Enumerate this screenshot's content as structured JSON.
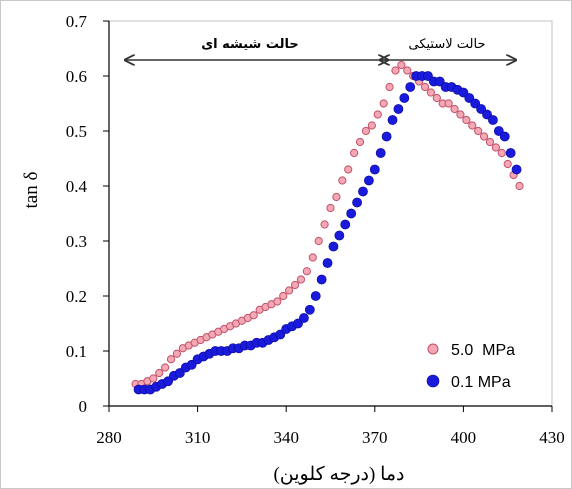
{
  "chart_data": {
    "type": "scatter",
    "xlabel": "دما (درجه کلوین)",
    "ylabel": "tan δ",
    "xlim": [
      280,
      430
    ],
    "ylim": [
      0,
      0.7
    ],
    "xticks": [
      "280",
      "310",
      "340",
      "370",
      "400",
      "430"
    ],
    "yticks": [
      "0",
      "0.1",
      "0.2",
      "0.3",
      "0.4",
      "0.5",
      "0.6",
      "0.7"
    ],
    "grid": false,
    "legend_position": "bottom-right",
    "annotations": {
      "glassy": "حالت شیشه ای",
      "rubbery": "حالت لاستیکی"
    },
    "series": [
      {
        "name": "5.0  MPa",
        "color": "#f4a8b4",
        "edge": "#c0506a",
        "x": [
          289,
          291,
          293,
          295,
          297,
          299,
          301,
          303,
          305,
          307,
          309,
          311,
          313,
          315,
          317,
          319,
          321,
          323,
          325,
          327,
          329,
          331,
          333,
          335,
          337,
          339,
          341,
          343,
          345,
          347,
          349,
          351,
          353,
          355,
          357,
          359,
          361,
          363,
          365,
          367,
          369,
          371,
          373,
          375,
          377,
          379,
          381,
          383,
          385,
          387,
          389,
          391,
          393,
          395,
          397,
          399,
          401,
          403,
          405,
          407,
          409,
          411,
          413,
          415,
          417,
          419
        ],
        "y": [
          0.04,
          0.04,
          0.045,
          0.05,
          0.06,
          0.07,
          0.085,
          0.095,
          0.105,
          0.11,
          0.115,
          0.12,
          0.125,
          0.13,
          0.135,
          0.14,
          0.145,
          0.15,
          0.155,
          0.16,
          0.165,
          0.175,
          0.18,
          0.185,
          0.19,
          0.2,
          0.21,
          0.22,
          0.23,
          0.245,
          0.27,
          0.3,
          0.33,
          0.36,
          0.38,
          0.41,
          0.43,
          0.46,
          0.48,
          0.5,
          0.51,
          0.53,
          0.55,
          0.58,
          0.61,
          0.62,
          0.61,
          0.6,
          0.59,
          0.58,
          0.57,
          0.56,
          0.55,
          0.55,
          0.54,
          0.53,
          0.52,
          0.51,
          0.5,
          0.49,
          0.48,
          0.47,
          0.46,
          0.44,
          0.42,
          0.4
        ]
      },
      {
        "name": "0.1 MPa",
        "color": "#1a1adc",
        "edge": "#0a0a9a",
        "x": [
          290,
          292,
          294,
          296,
          298,
          300,
          302,
          304,
          306,
          308,
          310,
          312,
          314,
          316,
          318,
          320,
          322,
          324,
          326,
          328,
          330,
          332,
          334,
          336,
          338,
          340,
          342,
          344,
          346,
          348,
          350,
          352,
          354,
          356,
          358,
          360,
          362,
          364,
          366,
          368,
          370,
          372,
          374,
          376,
          378,
          380,
          382,
          384,
          386,
          388,
          390,
          392,
          394,
          396,
          398,
          400,
          402,
          404,
          406,
          408,
          410,
          412,
          414,
          416,
          418
        ],
        "y": [
          0.03,
          0.03,
          0.03,
          0.035,
          0.04,
          0.045,
          0.055,
          0.06,
          0.07,
          0.075,
          0.085,
          0.09,
          0.095,
          0.1,
          0.1,
          0.1,
          0.105,
          0.105,
          0.11,
          0.11,
          0.115,
          0.115,
          0.12,
          0.125,
          0.13,
          0.14,
          0.145,
          0.15,
          0.16,
          0.175,
          0.2,
          0.23,
          0.26,
          0.29,
          0.31,
          0.33,
          0.35,
          0.37,
          0.39,
          0.41,
          0.43,
          0.46,
          0.49,
          0.52,
          0.54,
          0.56,
          0.58,
          0.6,
          0.6,
          0.6,
          0.59,
          0.59,
          0.58,
          0.58,
          0.575,
          0.57,
          0.56,
          0.55,
          0.54,
          0.53,
          0.52,
          0.5,
          0.49,
          0.46,
          0.43
        ]
      }
    ]
  }
}
